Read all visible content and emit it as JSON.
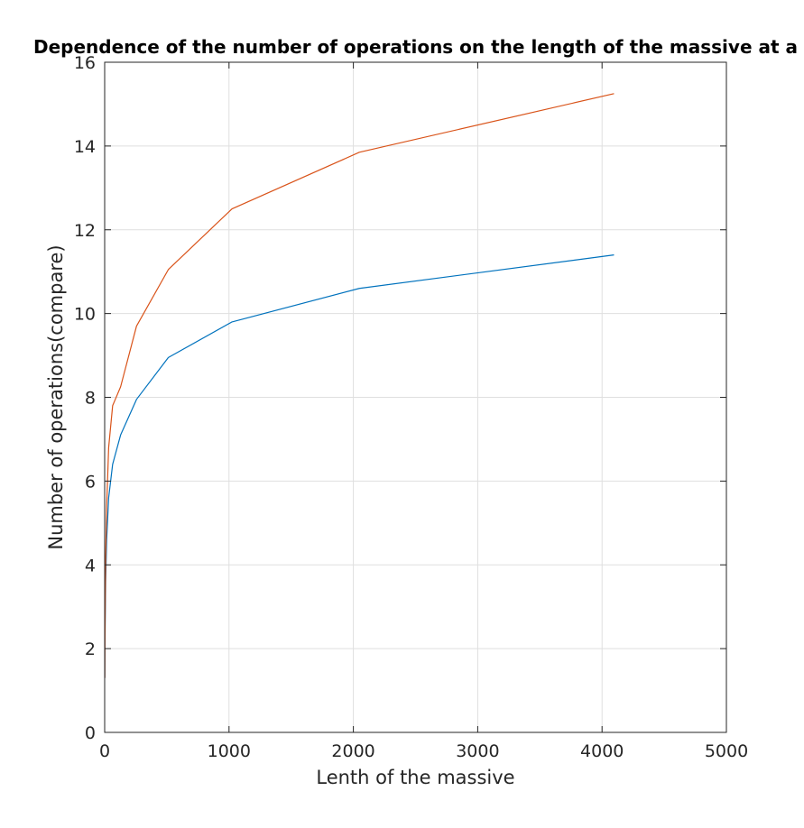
{
  "chart_data": {
    "type": "line",
    "title": "Dependence of the number of operations on the length of the massive at a",
    "xlabel": "Lenth of the massive",
    "ylabel": "Number of operations(compare)",
    "xlim": [
      0,
      5000
    ],
    "ylim": [
      0,
      16
    ],
    "xticks": [
      0,
      1000,
      2000,
      3000,
      4000,
      5000
    ],
    "yticks": [
      0,
      2,
      4,
      6,
      8,
      10,
      12,
      14,
      16
    ],
    "grid": true,
    "x": [
      1,
      2,
      4,
      8,
      16,
      32,
      64,
      128,
      256,
      512,
      1024,
      2048,
      4096
    ],
    "series": [
      {
        "color": "#0072bd",
        "values": [
          1.3,
          2.0,
          2.6,
          3.6,
          4.6,
          5.6,
          6.4,
          7.1,
          7.95,
          8.95,
          9.8,
          10.6,
          11.4
        ]
      },
      {
        "color": "#d95319",
        "values": [
          1.3,
          2.1,
          2.9,
          4.2,
          5.4,
          6.8,
          7.8,
          8.25,
          9.7,
          11.05,
          12.5,
          13.85,
          15.25
        ]
      }
    ]
  }
}
